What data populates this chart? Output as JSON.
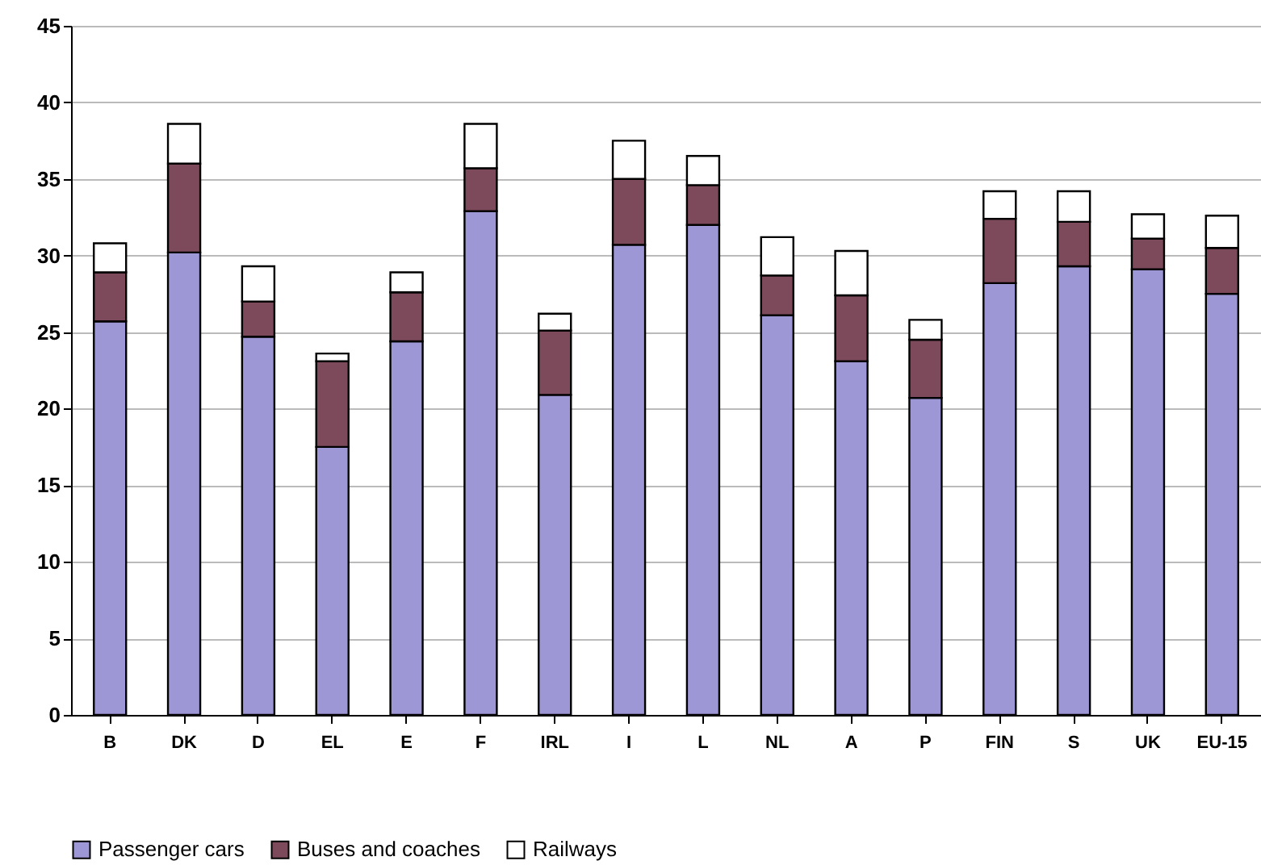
{
  "chart_data": {
    "type": "bar",
    "stacked": true,
    "categories": [
      "B",
      "DK",
      "D",
      "EL",
      "E",
      "F",
      "IRL",
      "I",
      "L",
      "NL",
      "A",
      "P",
      "FIN",
      "S",
      "UK",
      "EU-15"
    ],
    "series": [
      {
        "name": "Passenger cars",
        "color": "#9e97d6",
        "values": [
          25.7,
          30.2,
          24.7,
          17.5,
          24.4,
          32.9,
          20.9,
          30.7,
          32.0,
          26.1,
          23.1,
          20.7,
          28.2,
          29.3,
          29.1,
          27.5
        ]
      },
      {
        "name": "Buses and coaches",
        "color": "#7d4a5c",
        "values": [
          3.2,
          5.8,
          2.3,
          5.6,
          3.2,
          2.8,
          4.2,
          4.3,
          2.6,
          2.6,
          4.3,
          3.8,
          4.2,
          2.9,
          2.0,
          3.0
        ]
      },
      {
        "name": "Railways",
        "color": "#ffffff",
        "values": [
          1.9,
          2.6,
          2.3,
          0.5,
          1.3,
          2.9,
          1.1,
          2.5,
          1.9,
          2.5,
          2.9,
          1.3,
          1.8,
          2.0,
          1.6,
          2.1
        ]
      }
    ],
    "ylim": [
      0,
      45
    ],
    "yticks": [
      0,
      5,
      10,
      15,
      20,
      25,
      30,
      35,
      40,
      45
    ],
    "grid": "y",
    "legend": "bottom"
  }
}
